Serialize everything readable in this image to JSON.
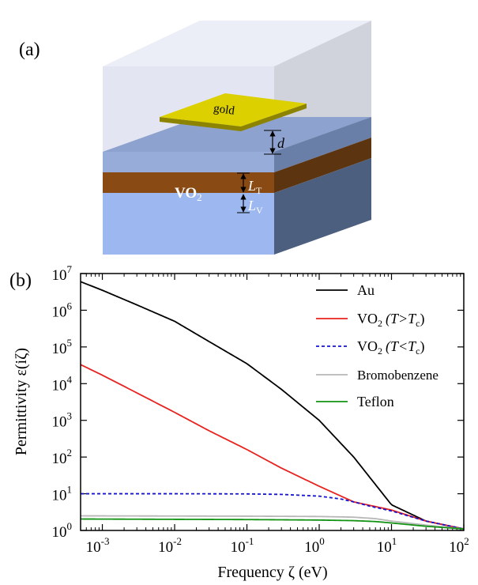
{
  "panel_a": {
    "label": "(a)",
    "gold_label": "gold",
    "d_label": "d",
    "LT_main": "L",
    "LT_sub": "T",
    "LV_main": "L",
    "LV_sub": "V",
    "vo2_main": "VO",
    "vo2_sub": "2",
    "colors": {
      "outer_top": "#eceef7",
      "outer_front": "#e3e6f2",
      "outer_side": "#d0d3dc",
      "layer_top": "#8ea2cf",
      "layer_front": "#97acd9",
      "layer_side": "#6a7fa8",
      "vo2_front": "#8a4a13",
      "vo2_side": "#5c3410",
      "substrate_front": "#9db8f0",
      "substrate_side": "#4d5f7e",
      "gold_top": "#dcd000",
      "gold_side": "#8c8400"
    }
  },
  "panel_b": {
    "label": "(b)",
    "legend": [
      {
        "label": "Au",
        "color": "#000000",
        "dash": false
      },
      {
        "label_main": "VO",
        "label_sub": "2",
        "label_cond": "(T>T",
        "label_cond_sub": "c",
        "label_end": ")",
        "color": "#e8231f",
        "dash": false
      },
      {
        "label_main": "VO",
        "label_sub": "2",
        "label_cond": "(T<T",
        "label_cond_sub": "c",
        "label_end": ")",
        "color": "#1414d2",
        "dash": true
      },
      {
        "label": "Bromobenzene",
        "color": "#b7b7b7",
        "dash": false
      },
      {
        "label": "Teflon",
        "color": "#139313",
        "dash": false
      }
    ]
  },
  "chart_data": {
    "type": "line",
    "xlabel": "Frequency ζ (eV)",
    "ylabel": "Permittivity ε(iζ)",
    "xscale": "log",
    "yscale": "log",
    "xlim": [
      0.0005,
      100
    ],
    "ylim": [
      1,
      10000000
    ],
    "x_ticks": [
      "10-3",
      "10-2",
      "10-1",
      "100",
      "101",
      "102"
    ],
    "y_ticks": [
      "100",
      "101",
      "102",
      "103",
      "104",
      "105",
      "106",
      "107"
    ],
    "legend_position": "top-right",
    "series": [
      {
        "name": "Au",
        "color": "#000000",
        "dash": false,
        "x": [
          0.0005,
          0.001,
          0.003,
          0.01,
          0.03,
          0.1,
          0.3,
          1,
          3,
          10,
          30,
          100
        ],
        "y": [
          6000000,
          3500000,
          1400000,
          500000,
          140000,
          35000,
          7000,
          1000,
          100,
          5,
          1.8,
          1.1
        ]
      },
      {
        "name": "VO2 (T>Tc)",
        "color": "#e8231f",
        "dash": false,
        "x": [
          0.0005,
          0.001,
          0.003,
          0.01,
          0.03,
          0.1,
          0.3,
          1,
          3,
          10,
          30,
          100
        ],
        "y": [
          33000,
          17000,
          5600,
          1650,
          520,
          160,
          50,
          16,
          6,
          3.6,
          1.8,
          1.1
        ]
      },
      {
        "name": "VO2 (T<Tc)",
        "color": "#1414d2",
        "dash": true,
        "x": [
          0.0005,
          0.01,
          0.1,
          0.3,
          1,
          2,
          3,
          5,
          10,
          30,
          100
        ],
        "y": [
          10,
          10,
          9.9,
          9.6,
          8.6,
          7.2,
          6,
          4.6,
          3.4,
          1.8,
          1.1
        ]
      },
      {
        "name": "Bromobenzene",
        "color": "#b7b7b7",
        "dash": false,
        "x": [
          0.0005,
          0.1,
          1,
          3,
          6,
          10,
          30,
          100
        ],
        "y": [
          2.5,
          2.45,
          2.4,
          2.3,
          2.1,
          1.8,
          1.4,
          1.1
        ]
      },
      {
        "name": "Teflon",
        "color": "#139313",
        "dash": false,
        "x": [
          0.0005,
          0.1,
          1,
          3,
          6,
          10,
          30,
          100
        ],
        "y": [
          2.05,
          1.98,
          1.92,
          1.85,
          1.75,
          1.6,
          1.3,
          1.1
        ]
      }
    ]
  }
}
